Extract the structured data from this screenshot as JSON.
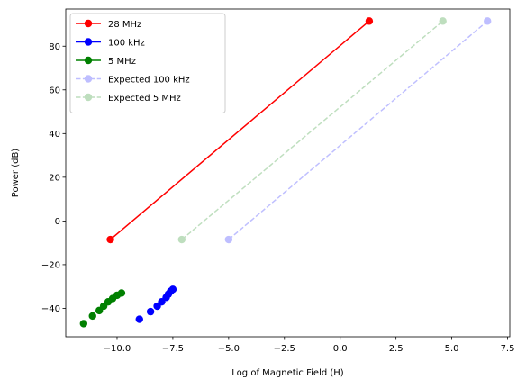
{
  "chart_data": {
    "type": "line",
    "title": "",
    "xlabel": "Log of Magnetic Field (H)",
    "ylabel": "Power (dB)",
    "xlim": [
      -12.3,
      7.6
    ],
    "ylim": [
      -53,
      97
    ],
    "xticks": [
      -10.0,
      -7.5,
      -5.0,
      -2.5,
      0.0,
      2.5,
      5.0,
      7.5
    ],
    "xtick_labels": [
      "−10.0",
      "−7.5",
      "−5.0",
      "−2.5",
      "0.0",
      "2.5",
      "5.0",
      "7.5"
    ],
    "yticks": [
      -40,
      -20,
      0,
      20,
      40,
      60,
      80
    ],
    "ytick_labels": [
      "−40",
      "−20",
      "0",
      "20",
      "40",
      "60",
      "80"
    ],
    "grid": false,
    "legend_position": "upper-left",
    "series": [
      {
        "name": "28 MHz",
        "color": "#ff0000",
        "style": "solid",
        "alpha": 1,
        "x": [
          -10.3,
          1.3
        ],
        "y": [
          -8.5,
          91.5
        ]
      },
      {
        "name": "100 kHz",
        "color": "#0000ff",
        "style": "none",
        "alpha": 1,
        "x": [
          -9.0,
          -8.5,
          -8.2,
          -8.0,
          -7.8,
          -7.7,
          -7.6,
          -7.5
        ],
        "y": [
          -45,
          -41.5,
          -39,
          -37,
          -35,
          -33.5,
          -32.2,
          -31.3
        ]
      },
      {
        "name": "5 MHz",
        "color": "#008000",
        "style": "none",
        "alpha": 1,
        "x": [
          -11.5,
          -11.1,
          -10.8,
          -10.6,
          -10.4,
          -10.2,
          -10.0,
          -9.8
        ],
        "y": [
          -47,
          -43.5,
          -41,
          -39,
          -37,
          -35.5,
          -34,
          -33
        ]
      },
      {
        "name": "Expected 100 kHz",
        "color": "#0000ff",
        "style": "dashed",
        "alpha": 0.25,
        "x": [
          -5.0,
          6.6
        ],
        "y": [
          -8.5,
          91.5
        ]
      },
      {
        "name": "Expected 5 MHz",
        "color": "#008000",
        "style": "dashed",
        "alpha": 0.25,
        "x": [
          -7.1,
          4.6
        ],
        "y": [
          -8.5,
          91.5
        ]
      }
    ]
  }
}
